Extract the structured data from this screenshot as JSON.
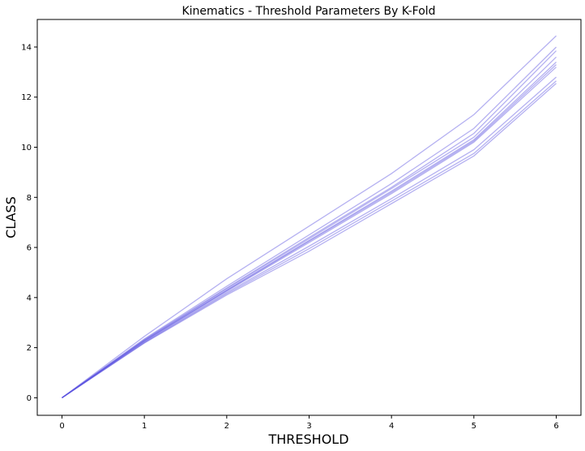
{
  "chart_data": {
    "type": "line",
    "title": "Kinematics - Threshold Parameters By K-Fold",
    "xlabel": "THRESHOLD",
    "ylabel": "CLASS",
    "x": [
      0,
      1,
      2,
      3,
      4,
      5,
      6
    ],
    "xlim": [
      -0.3,
      6.3
    ],
    "ylim": [
      -0.7,
      15.1
    ],
    "xticks": [
      0,
      1,
      2,
      3,
      4,
      5,
      6
    ],
    "yticks": [
      0,
      2,
      4,
      6,
      8,
      10,
      12,
      14
    ],
    "grid": false,
    "legend": "none",
    "line_color": "#5a52e0",
    "series": [
      {
        "values": [
          0,
          2.45,
          4.75,
          6.85,
          8.95,
          11.3,
          14.45
        ]
      },
      {
        "values": [
          0,
          2.35,
          4.45,
          6.5,
          8.55,
          10.75,
          14.0
        ]
      },
      {
        "values": [
          0,
          2.32,
          4.38,
          6.4,
          8.4,
          10.55,
          13.85
        ]
      },
      {
        "values": [
          0,
          2.3,
          4.35,
          6.35,
          8.35,
          10.4,
          13.6
        ]
      },
      {
        "values": [
          0,
          2.28,
          4.3,
          6.28,
          8.25,
          10.3,
          13.4
        ]
      },
      {
        "values": [
          0,
          2.27,
          4.28,
          6.25,
          8.2,
          10.25,
          13.3
        ]
      },
      {
        "values": [
          0,
          2.25,
          4.25,
          6.2,
          8.15,
          10.2,
          13.2
        ]
      },
      {
        "values": [
          0,
          2.22,
          4.2,
          6.05,
          7.95,
          9.9,
          12.8
        ]
      },
      {
        "values": [
          0,
          2.2,
          4.15,
          5.95,
          7.85,
          9.75,
          12.65
        ]
      },
      {
        "values": [
          0,
          2.18,
          4.1,
          5.85,
          7.75,
          9.65,
          12.55
        ]
      }
    ]
  }
}
